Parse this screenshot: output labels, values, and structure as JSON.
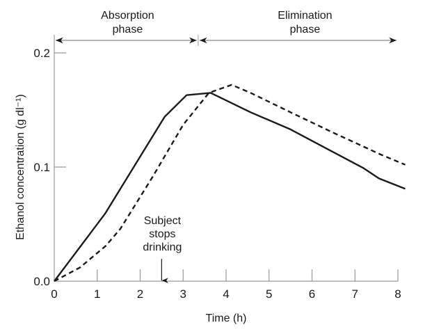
{
  "chart_data": {
    "type": "line",
    "title": "",
    "xlabel": "Time (h)",
    "ylabel": "Ethanol concentration (g dl⁻¹)",
    "xlim": [
      0,
      8.17
    ],
    "ylim": [
      0,
      0.2
    ],
    "x_ticks": [
      0,
      1,
      2,
      3,
      4,
      5,
      6,
      7,
      8
    ],
    "x_tick_labels": [
      "0",
      "1",
      "2",
      "3",
      "4",
      "5",
      "6",
      "7",
      "8"
    ],
    "y_ticks": [
      0.0,
      0.1,
      0.2
    ],
    "y_tick_labels": [
      "0.0",
      "0.1",
      "0.2"
    ],
    "grid": false,
    "legend": null,
    "series": [
      {
        "name": "solid",
        "style": "solid",
        "color": "#1a1a1a",
        "points": [
          [
            0,
            0
          ],
          [
            1.18,
            0.059
          ],
          [
            2.57,
            0.144
          ],
          [
            3.08,
            0.163
          ],
          [
            3.64,
            0.165
          ],
          [
            4.57,
            0.148
          ],
          [
            5.5,
            0.133
          ],
          [
            6.4,
            0.115
          ],
          [
            7.2,
            0.099
          ],
          [
            7.56,
            0.09
          ],
          [
            8.17,
            0.081
          ]
        ]
      },
      {
        "name": "dashed",
        "style": "dashed",
        "color": "#1a1a1a",
        "points": [
          [
            0,
            0
          ],
          [
            0.6,
            0.012
          ],
          [
            1.2,
            0.031
          ],
          [
            1.54,
            0.046
          ],
          [
            2.3,
            0.092
          ],
          [
            3.0,
            0.137
          ],
          [
            3.6,
            0.165
          ],
          [
            4.13,
            0.172
          ],
          [
            4.57,
            0.165
          ],
          [
            5.5,
            0.148
          ],
          [
            6.5,
            0.13
          ],
          [
            7.6,
            0.111
          ],
          [
            8.17,
            0.102
          ]
        ]
      }
    ],
    "phases": [
      {
        "label_line1": "Absorption",
        "label_line2": "phase",
        "from": 0,
        "to": 3.35
      },
      {
        "label_line1": "Elimination",
        "label_line2": "phase",
        "from": 3.35,
        "to": 8.0
      }
    ],
    "annotations": [
      {
        "lines": [
          "Subject",
          "stops",
          "drinking"
        ],
        "x": 2.5
      }
    ]
  }
}
